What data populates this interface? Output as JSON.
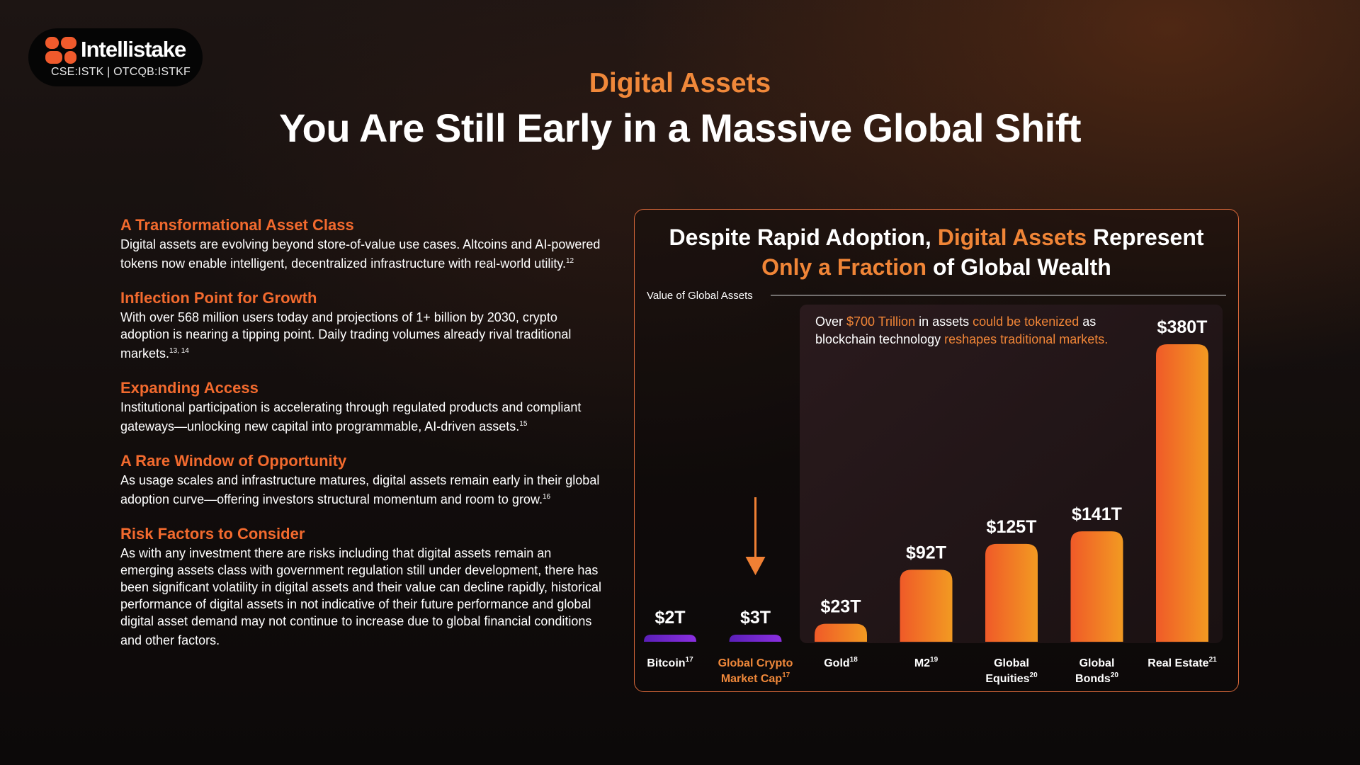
{
  "brand": {
    "name": "Intellistake",
    "ticker": "CSE:ISTK | OTCQB:ISTKF",
    "accent": "#f26a2e"
  },
  "header": {
    "eyebrow": "Digital Assets",
    "title": "You Are Still Early in a Massive Global Shift"
  },
  "points": [
    {
      "title": "A Transformational Asset Class",
      "body": "Digital assets are evolving beyond store-of-value use cases. Altcoins and AI-powered tokens now enable intelligent, decentralized infrastructure with real-world utility.",
      "ref": "12"
    },
    {
      "title": "Inflection Point for Growth",
      "body": "With over 568 million users today and projections of 1+ billion by 2030, crypto adoption is nearing a tipping point. Daily trading volumes already rival traditional markets.",
      "ref": "13, 14"
    },
    {
      "title": "Expanding Access",
      "body": "Institutional participation is accelerating through regulated products and compliant gateways—unlocking new capital into programmable, AI-driven assets.",
      "ref": "15"
    },
    {
      "title": "A Rare Window of Opportunity",
      "body": "As usage scales and infrastructure matures, digital assets remain early in their global adoption curve—offering investors structural momentum and room to grow.",
      "ref": "16"
    },
    {
      "title": "Risk Factors to Consider",
      "body": "As with any investment there are risks including that digital assets remain an emerging assets class with government regulation still under development, there has been significant volatility in digital assets and their value can decline rapidly, historical performance of digital assets in not indicative of their future performance and global digital asset demand may not continue to increase due to global financial conditions and other factors.",
      "ref": ""
    }
  ],
  "chart_card": {
    "title_part1": "Despite Rapid Adoption, ",
    "title_part2": "Digital Assets",
    "title_part3": " Represent",
    "title_part4": "Only a Fraction",
    "title_part5": " of Global Wealth",
    "callout_1": "Over ",
    "callout_2": "$700 Trillion",
    "callout_3": " in assets ",
    "callout_4": "could be tokenized",
    "callout_5": " as blockchain technology ",
    "callout_6": "reshapes traditional markets."
  },
  "chart_data": {
    "type": "bar",
    "title": "Value of Global Assets",
    "unit": "Trillion USD",
    "categories": [
      "Bitcoin",
      "Global Crypto Market Cap",
      "Gold",
      "M2",
      "Global Equities",
      "Global Bonds",
      "Real Estate"
    ],
    "category_lines": [
      [
        "Bitcoin"
      ],
      [
        "Global Crypto",
        "Market Cap"
      ],
      [
        "Gold"
      ],
      [
        "M2"
      ],
      [
        "Global",
        "Equities"
      ],
      [
        "Global",
        "Bonds"
      ],
      [
        "Real Estate"
      ]
    ],
    "category_refs": [
      "17",
      "17",
      "18",
      "19",
      "20",
      "20",
      "21"
    ],
    "values": [
      2,
      3,
      23,
      92,
      125,
      141,
      380
    ],
    "value_labels": [
      "$2T",
      "$3T",
      "$23T",
      "$92T",
      "$125T",
      "$141T",
      "$380T"
    ],
    "ylim": [
      0,
      380
    ],
    "highlight_category": "Global Crypto Market Cap",
    "colors": {
      "crypto_bar": "#7a2bd9",
      "asset_bar_top": "#f28a25",
      "asset_bar_bottom": "#f05a28",
      "highlight_label": "#f0883a",
      "arrow": "#f08034"
    }
  }
}
